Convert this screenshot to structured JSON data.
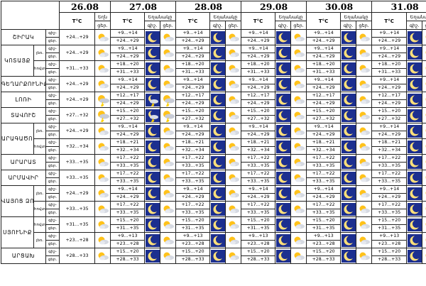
{
  "columns": {
    "dates": [
      "26.08",
      "27.08",
      "28.08",
      "29.08",
      "30.08",
      "31.08"
    ],
    "temp_header": "T°C",
    "weather_header_first": "Եղն",
    "weather_header_short": "եղ.",
    "weather_header": "Եղանակը",
    "night_header": "գիշ.",
    "day_header": "ցեր.",
    "night_short": "գիշ-",
    "day_short": "ցեր."
  },
  "time_labels": {
    "night": "գիշ-",
    "day": "ցեր."
  },
  "sub_labels": {
    "mountain": "լեռ.",
    "plain": "հովտ."
  },
  "icon_legend": {
    "clear": "clear-moon",
    "partly": "partly-cloudy-moon",
    "sun": "sun-cloud",
    "storm": "thunderstorm"
  },
  "regions": [
    {
      "name": "ՇԻՐԱԿ",
      "rows": [
        {
          "sub": "",
          "day26": "+24...+29",
          "days": [
            [
              "+9...+14",
              "+24...+29"
            ],
            [
              "+9...+14",
              "+24...+29"
            ],
            [
              "+9...+14",
              "+24...+29"
            ],
            [
              "+9...+14",
              "+24...+29"
            ],
            [
              "+9...+14",
              "+24...+29"
            ]
          ]
        }
      ]
    },
    {
      "name": "ԿՈՏԱՅՔ",
      "rows": [
        {
          "sub": "լեռ.",
          "day26": "+24...+29",
          "days": [
            [
              "+9...+14",
              "+24...+29"
            ],
            [
              "+9...+14",
              "+24...+29"
            ],
            [
              "+9...+14",
              "+24...+29"
            ],
            [
              "+9...+14",
              "+24...+29"
            ],
            [
              "+9...+14",
              "+24...+29"
            ]
          ]
        },
        {
          "sub": "հովտ.",
          "day26": "+31...+33",
          "days": [
            [
              "+18...+20",
              "+31...+33"
            ],
            [
              "+18...+20",
              "+31...+33"
            ],
            [
              "+18...+20",
              "+31...+33"
            ],
            [
              "+18...+20",
              "+31...+33"
            ],
            [
              "+18...+20",
              "+31...+33"
            ]
          ]
        }
      ]
    },
    {
      "name": "ԳԵՂԱՐՔՈՒՆԻՔ",
      "rows": [
        {
          "sub": "",
          "day26": "+24...+29",
          "days": [
            [
              "+9...+14",
              "+24...+29"
            ],
            [
              "+9...+14",
              "+24...+29"
            ],
            [
              "+9...+14",
              "+24...+29"
            ],
            [
              "+9...+14",
              "+24...+29"
            ],
            [
              "+9...+14",
              "+24...+29"
            ]
          ]
        }
      ]
    },
    {
      "name": "ԼՈՌԻ",
      "rows": [
        {
          "sub": "",
          "day26": "+24...+29",
          "days": [
            [
              "+12...+17",
              "+24...+29"
            ],
            [
              "+12...+17",
              "+24...+29"
            ],
            [
              "+12...+17",
              "+24...+29"
            ],
            [
              "+12...+17",
              "+24...+29"
            ],
            [
              "+12...+17",
              "+24...+29"
            ]
          ]
        }
      ]
    },
    {
      "name": "ՏԱՎՈՒՇ",
      "rows": [
        {
          "sub": "",
          "day26": "+27...+32",
          "days": [
            [
              "+15...+20",
              "+27...+32"
            ],
            [
              "+15...+20",
              "+27...+32"
            ],
            [
              "+15...+20",
              "+27...+32"
            ],
            [
              "+15...+20",
              "+27...+32"
            ],
            [
              "+15...+20",
              "+27...+32"
            ]
          ]
        }
      ]
    },
    {
      "name": "ԱՐԱԳԱԾՈՏՆ",
      "rows": [
        {
          "sub": "լեռ.",
          "day26": "+24...+29",
          "days": [
            [
              "+9...+14",
              "+24...+29"
            ],
            [
              "+9...+14",
              "+24...+29"
            ],
            [
              "+9...+14",
              "+24...+29"
            ],
            [
              "+9...+14",
              "+24...+29"
            ],
            [
              "+9...+14",
              "+24...+29"
            ]
          ]
        },
        {
          "sub": "հովտ.",
          "day26": "+32...+34",
          "days": [
            [
              "+18...+21",
              "+32...+34"
            ],
            [
              "+18...+21",
              "+32...+34"
            ],
            [
              "+18...+21",
              "+32...+34"
            ],
            [
              "+18...+21",
              "+32...+34"
            ],
            [
              "+18...+21",
              "+32...+34"
            ]
          ]
        }
      ]
    },
    {
      "name": "ԱՐԱՐԱՏ",
      "rows": [
        {
          "sub": "",
          "day26": "+33...+35",
          "days": [
            [
              "+17...+22",
              "+33...+35"
            ],
            [
              "+17...+22",
              "+33...+35"
            ],
            [
              "+17...+22",
              "+33...+35"
            ],
            [
              "+17...+22",
              "+33...+35"
            ],
            [
              "+17...+22",
              "+33...+35"
            ]
          ]
        }
      ]
    },
    {
      "name": "ԱՐՄԱՎԻՐ",
      "rows": [
        {
          "sub": "",
          "day26": "+33...+35",
          "days": [
            [
              "+17...+22",
              "+33...+35"
            ],
            [
              "+17...+22",
              "+33...+35"
            ],
            [
              "+17...+22",
              "+33...+35"
            ],
            [
              "+17...+22",
              "+33...+35"
            ],
            [
              "+17...+22",
              "+33...+35"
            ]
          ]
        }
      ]
    },
    {
      "name": "ՎԱՅՈՑ ՁՈՐ",
      "rows": [
        {
          "sub": "լեռ.",
          "day26": "+24...+29",
          "days": [
            [
              "+9...+14",
              "+24...+29"
            ],
            [
              "+9...+14",
              "+24...+29"
            ],
            [
              "+9...+14",
              "+24...+29"
            ],
            [
              "+9...+14",
              "+24...+29"
            ],
            [
              "+9...+14",
              "+24...+29"
            ]
          ]
        },
        {
          "sub": "հովտ.",
          "day26": "+33...+35",
          "days": [
            [
              "+17...+22",
              "+33...+35"
            ],
            [
              "+17...+22",
              "+33...+35"
            ],
            [
              "+17...+22",
              "+33...+35"
            ],
            [
              "+17...+22",
              "+33...+35"
            ],
            [
              "+17...+22",
              "+33...+35"
            ]
          ]
        }
      ]
    },
    {
      "name": "ՍՅՈՒՆԻՔ",
      "rows": [
        {
          "sub": "հովտ.",
          "day26": "+31...+35",
          "days": [
            [
              "+15...+20",
              "+31...+35"
            ],
            [
              "+15...+20",
              "+31...+35"
            ],
            [
              "+15...+20",
              "+31...+35"
            ],
            [
              "+15...+20",
              "+31...+35"
            ],
            [
              "+15...+20",
              "+31...+35"
            ]
          ]
        },
        {
          "sub": "լեռ.",
          "day26": "+23...+28",
          "days": [
            [
              "+9...+13",
              "+23...+28"
            ],
            [
              "+9...+13",
              "+23...+28"
            ],
            [
              "+9...+13",
              "+23...+28"
            ],
            [
              "+9...+13",
              "+23...+28"
            ],
            [
              "+9...+13",
              "+23...+28"
            ]
          ]
        }
      ]
    },
    {
      "name": "ԱՐՑԱԽ",
      "rows": [
        {
          "sub": "",
          "day26": "+28...+33",
          "days": [
            [
              "+15...+20",
              "+28...+33"
            ],
            [
              "+15...+20",
              "+28...+33"
            ],
            [
              "+15...+20",
              "+28...+33"
            ],
            [
              "+15...+20",
              "+28...+33"
            ],
            [
              "+15...+20",
              "+28...+33"
            ]
          ]
        }
      ]
    }
  ]
}
